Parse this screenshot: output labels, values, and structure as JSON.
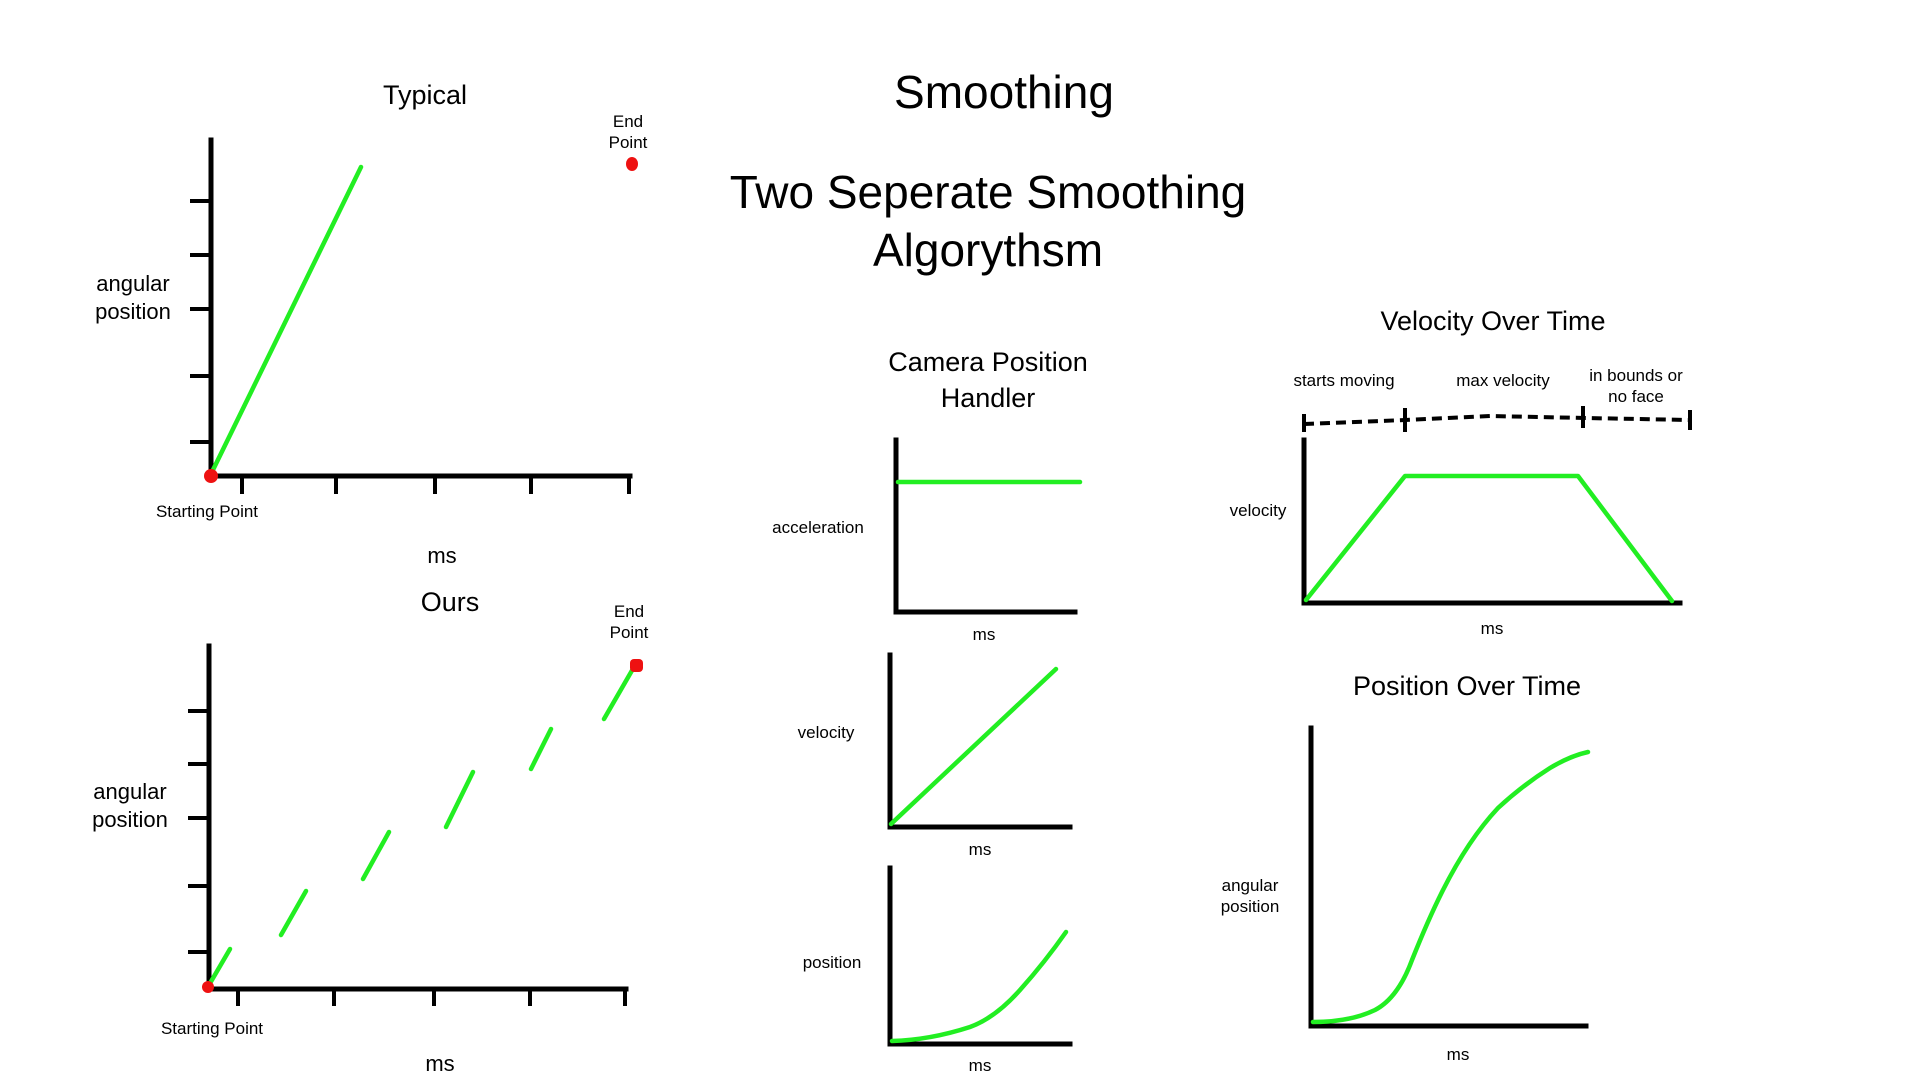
{
  "title": "Smoothing",
  "subtitle_line1": "Two Seperate Smoothing",
  "subtitle_line2": "Algorythsm",
  "typical": {
    "title": "Typical",
    "y_label_1": "angular",
    "y_label_2": "position",
    "x_label": "ms",
    "start_label": "Starting Point",
    "end_label_1": "End",
    "end_label_2": "Point"
  },
  "ours": {
    "title": "Ours",
    "y_label_1": "angular",
    "y_label_2": "position",
    "x_label": "ms",
    "start_label": "Starting Point",
    "end_label_1": "End",
    "end_label_2": "Point"
  },
  "camera": {
    "title_line1": "Camera Position",
    "title_line2": "Handler",
    "acceleration": {
      "y_label": "acceleration",
      "x_label": "ms"
    },
    "velocity": {
      "y_label": "velocity",
      "x_label": "ms"
    },
    "position": {
      "y_label": "position",
      "x_label": "ms"
    }
  },
  "velocity_over_time": {
    "title": "Velocity Over Time",
    "phase_1": "starts moving",
    "phase_2": "max velocity",
    "phase_3_line1": "in bounds or",
    "phase_3_line2": "no face",
    "y_label": "velocity",
    "x_label": "ms"
  },
  "position_over_time": {
    "title": "Position Over Time",
    "y_label_1": "angular",
    "y_label_2": "position",
    "x_label": "ms"
  },
  "colors": {
    "curve": "#22ee22",
    "point": "#ee1111",
    "axis": "#000000"
  }
}
